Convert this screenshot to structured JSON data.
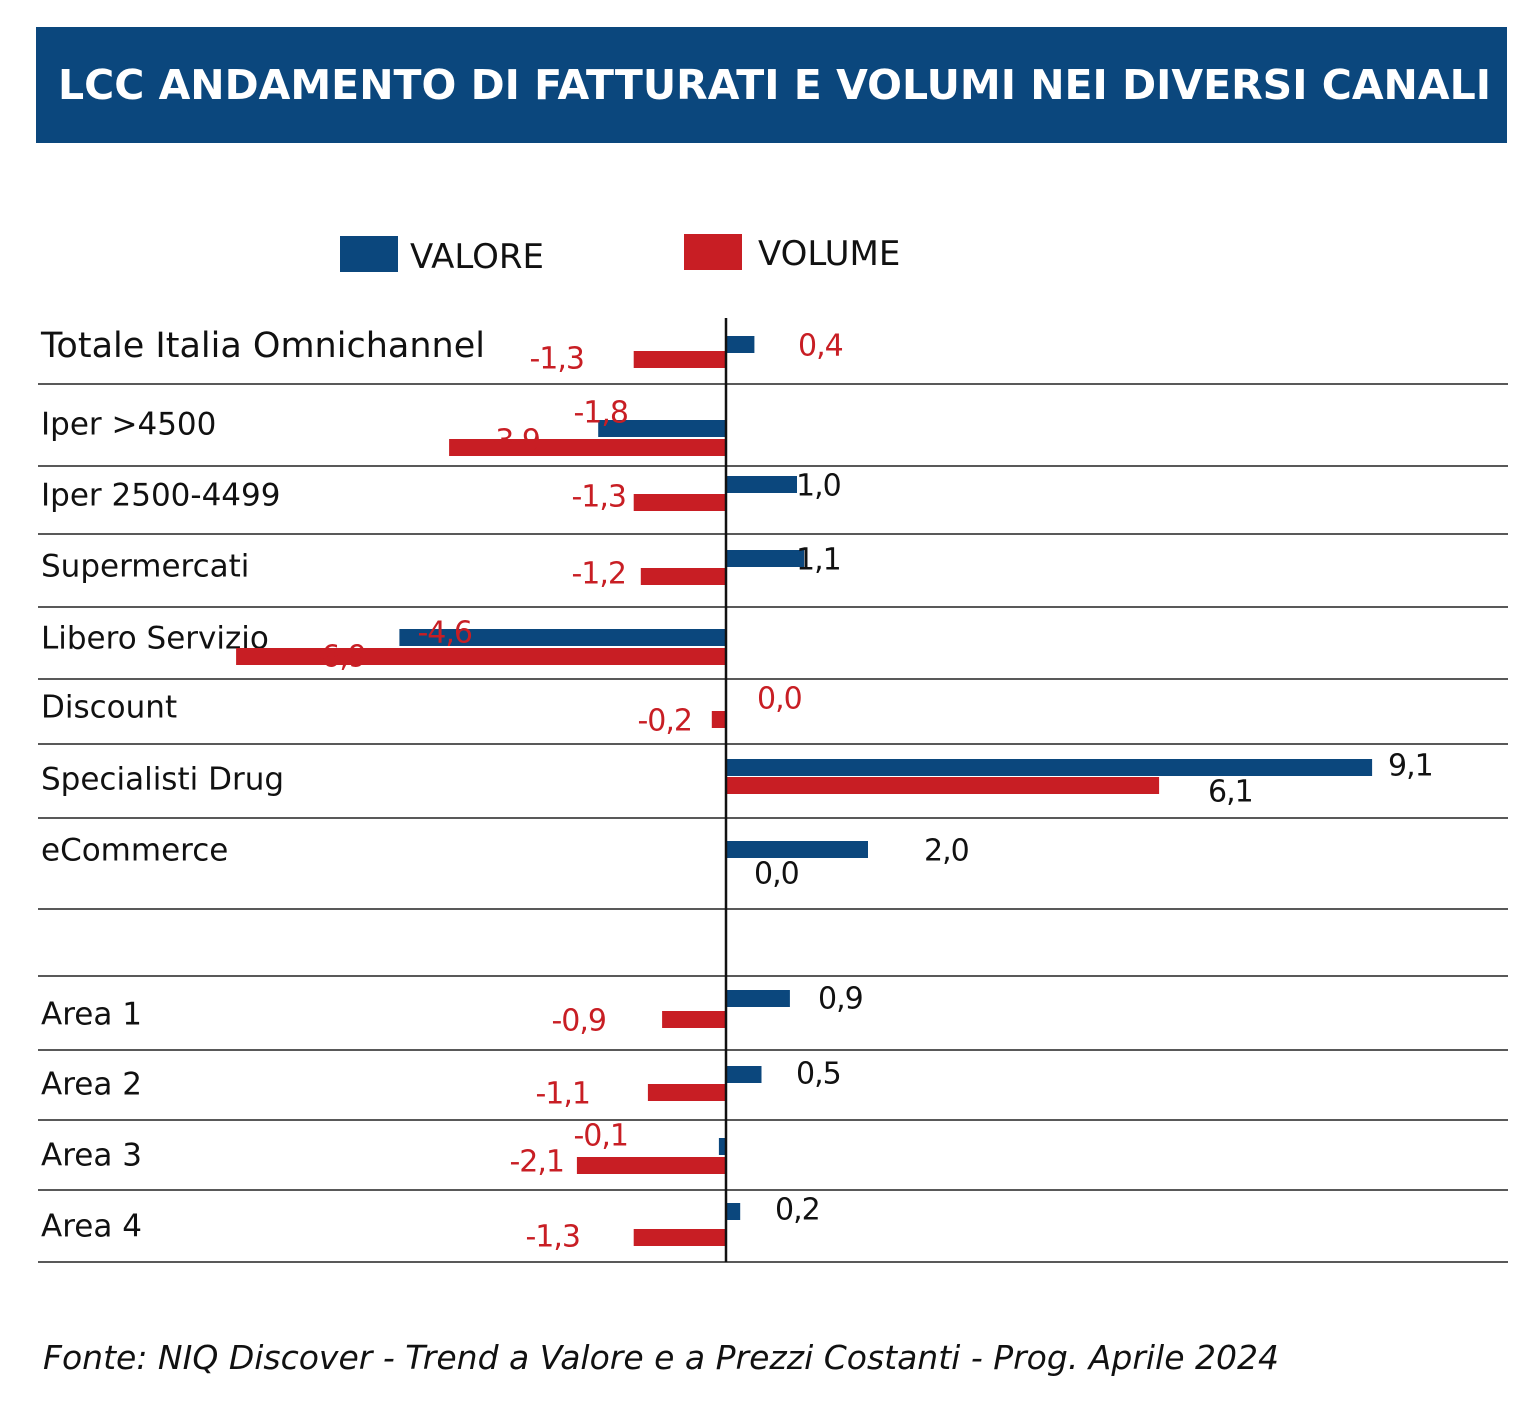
{
  "title": "LCC ANDAMENTO DI FATTURATI E VOLUMI NEI DIVERSI CANALI",
  "source": "Fonte: NIQ Discover - Trend a Valore e a Prezzi Costanti - Prog. Aprile 2024",
  "colors": {
    "valore": "#0b477d",
    "volume": "#c81e24",
    "header": "#0b477d"
  },
  "chart_data": {
    "type": "bar",
    "orientation": "horizontal",
    "legend": [
      "VALORE",
      "VOLUME"
    ],
    "legend_position": "top",
    "categories": [
      "Totale Italia Omnichannel",
      "Iper >4500",
      "Iper 2500-4499",
      "Supermercati",
      "Libero Servizio",
      "Discount",
      "Specialisti Drug",
      "eCommerce",
      "",
      "Area 1",
      "Area 2",
      "Area 3",
      "Area 4"
    ],
    "series": [
      {
        "name": "VALORE",
        "values": [
          0.4,
          -1.8,
          1.0,
          1.1,
          -4.6,
          0.0,
          9.1,
          2.0,
          null,
          0.9,
          0.5,
          -0.1,
          0.2
        ],
        "labels": [
          "0,4",
          "-1,8",
          "1,0",
          "1,1",
          "-4,6",
          "0,0",
          "9,1",
          "2,0",
          "",
          "0,9",
          "0,5",
          "-0,1",
          "0,2"
        ]
      },
      {
        "name": "VOLUME",
        "values": [
          -1.3,
          -3.9,
          -1.3,
          -1.2,
          -6.9,
          -0.2,
          6.1,
          0.0,
          null,
          -0.9,
          -1.1,
          -2.1,
          -1.3
        ],
        "labels": [
          "-1,3",
          "-3,9",
          "-1,3",
          "-1,2",
          "-6,9",
          "-0,2",
          "6,1",
          "0,0",
          "",
          "-0,9",
          "-1,1",
          "-2,1",
          "-1,3"
        ]
      }
    ],
    "xlim": [
      -8,
      9.5
    ]
  }
}
